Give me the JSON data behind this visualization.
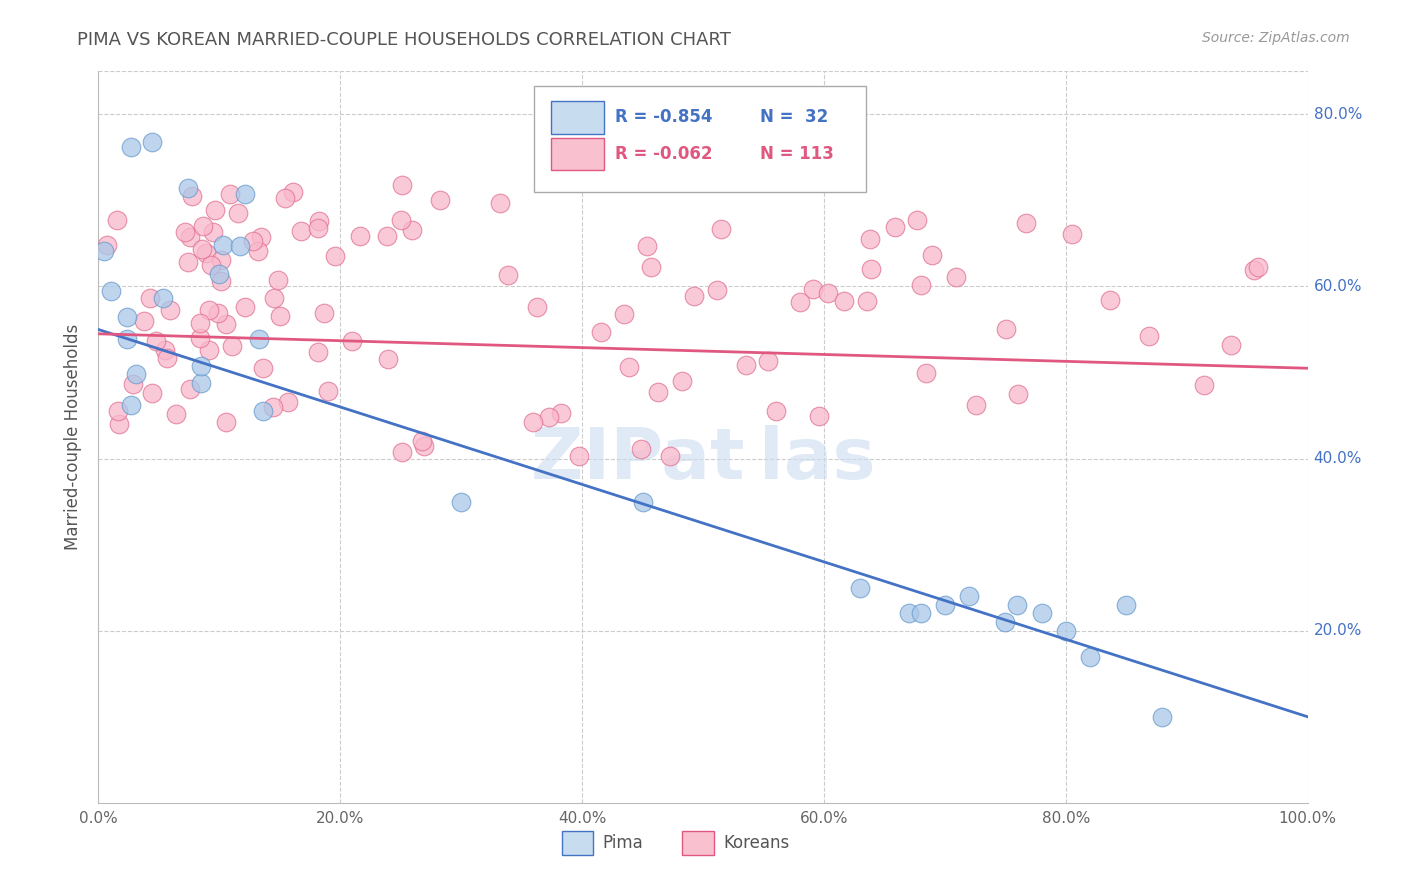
{
  "title": "PIMA VS KOREAN MARRIED-COUPLE HOUSEHOLDS CORRELATION CHART",
  "source_text": "Source: ZipAtlas.com",
  "ylabel": "Married-couple Households",
  "pima_R": -0.854,
  "pima_N": 32,
  "korean_R": -0.062,
  "korean_N": 113,
  "pima_color": "#a8c8e8",
  "pima_line_color": "#4472c4",
  "pima_edge_color": "#6699cc",
  "korean_color": "#f9b8cc",
  "korean_line_color": "#e05880",
  "korean_edge_color": "#e07090",
  "background_color": "#ffffff",
  "plot_bg_color": "#ffffff",
  "grid_color": "#cccccc",
  "title_color": "#555555",
  "tick_color": "#4472c4",
  "xlim": [
    0.0,
    100.0
  ],
  "ylim": [
    0.0,
    85.0
  ],
  "xticks": [
    0.0,
    20.0,
    40.0,
    60.0,
    80.0,
    100.0
  ],
  "yticks": [
    20.0,
    40.0,
    60.0,
    80.0
  ],
  "legend_box_color_pima": "#c8dcf0",
  "legend_box_color_korean": "#f9c0cf",
  "pima_trend_start_y": 55.0,
  "pima_trend_end_y": 10.0,
  "korean_trend_start_y": 54.5,
  "korean_trend_end_y": 50.5,
  "watermark_color": "#ccddf0",
  "watermark_alpha": 0.6
}
